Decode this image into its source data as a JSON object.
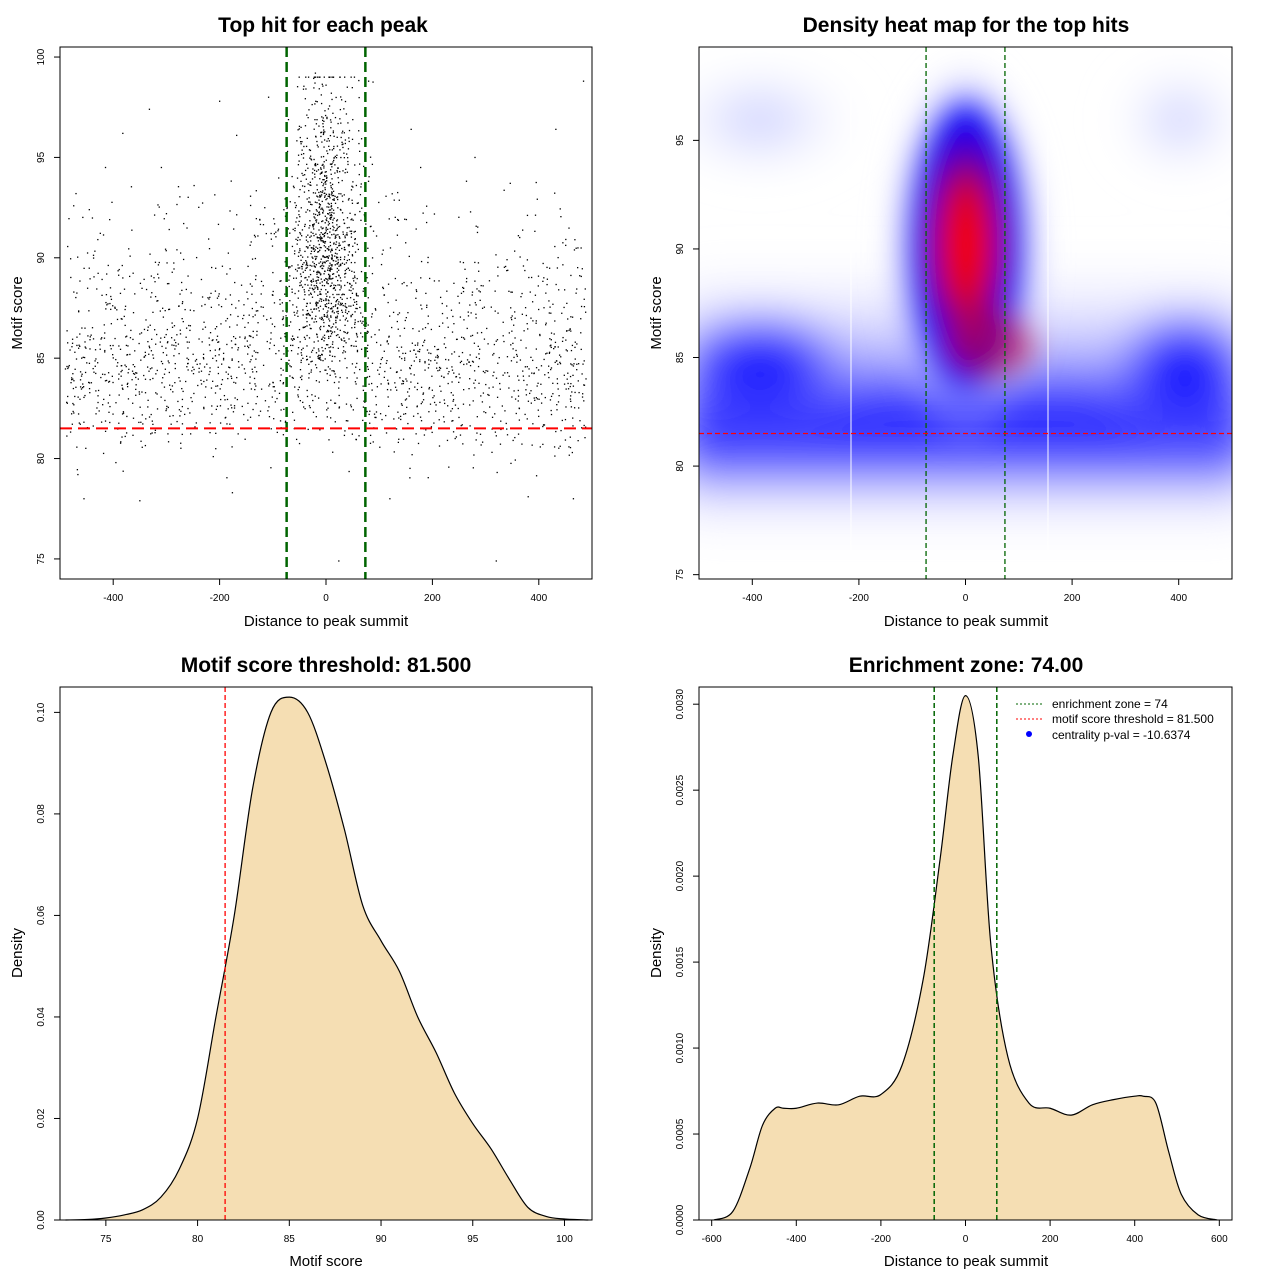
{
  "chart_data": [
    {
      "type": "scatter",
      "title": "Top hit for each peak",
      "xlabel": "Distance to peak summit",
      "ylabel": "Motif score",
      "xlim": [
        -500,
        500
      ],
      "ylim": [
        74,
        100.5
      ],
      "xticks": [
        -400,
        -200,
        0,
        200,
        400
      ],
      "yticks": [
        75,
        80,
        85,
        90,
        95,
        100
      ],
      "vlines": [
        -74,
        74
      ],
      "hline": 81.5,
      "colors": {
        "points": "#000000",
        "vlines": "#006400",
        "hline": "#ff0000"
      },
      "points_summary": "about 3000 points; a dense column of high scores (85–99) centered on 0 between -74 and 74; elsewhere points spread uniformly over -490..490 with scores mostly 80–94",
      "sample_points": [
        [
          -470,
          93.2
        ],
        [
          -455,
          78.0
        ],
        [
          -445,
          92.4
        ],
        [
          -420,
          84.2
        ],
        [
          -395,
          79.8
        ],
        [
          -382,
          96.2
        ],
        [
          -350,
          77.9
        ],
        [
          -332,
          97.4
        ],
        [
          -300,
          92.2
        ],
        [
          -248,
          93.6
        ],
        [
          -200,
          97.8
        ],
        [
          -176,
          78.3
        ],
        [
          -168,
          96.1
        ],
        [
          -108,
          98.0
        ],
        [
          -60,
          93.5
        ],
        [
          -20,
          99.2
        ],
        [
          0,
          98.6
        ],
        [
          10,
          98.2
        ],
        [
          24,
          74.9
        ],
        [
          40,
          98.5
        ],
        [
          80,
          98.8
        ],
        [
          120,
          78.0
        ],
        [
          160,
          96.4
        ],
        [
          214,
          82.8
        ],
        [
          280,
          95.0
        ],
        [
          320,
          74.9
        ],
        [
          380,
          78.1
        ],
        [
          432,
          96.4
        ],
        [
          465,
          78.0
        ],
        [
          484,
          98.8
        ]
      ]
    },
    {
      "type": "heatmap",
      "title": "Density heat map for the top hits",
      "xlabel": "Distance to peak summit",
      "ylabel": "Motif score",
      "xlim": [
        -500,
        500
      ],
      "ylim": [
        74.8,
        99.3
      ],
      "xticks": [
        -400,
        -200,
        0,
        200,
        400
      ],
      "yticks": [
        75,
        80,
        85,
        90,
        95
      ],
      "vlines": [
        -74,
        74
      ],
      "hline": 81.5,
      "colorscale": [
        "#ffffff",
        "#0000ff",
        "#ff0000"
      ],
      "hotspot": {
        "x": 0,
        "y": 90
      },
      "secondary_blob": {
        "x": 400,
        "y": 84.5
      }
    },
    {
      "type": "area",
      "title": "Motif score threshold: 81.500",
      "xlabel": "Motif score",
      "ylabel": "Density",
      "xlim": [
        72.5,
        101.5
      ],
      "ylim": [
        0,
        0.105
      ],
      "xticks": [
        75,
        80,
        85,
        90,
        95,
        100
      ],
      "yticks": [
        "0.00",
        "0.02",
        "0.04",
        "0.06",
        "0.08",
        "0.10"
      ],
      "vline": 81.5,
      "fill": "#f5deb3",
      "x": [
        72.8,
        74,
        75,
        76,
        77,
        78,
        79,
        80,
        81,
        82,
        83,
        84,
        85,
        86,
        87,
        88,
        89,
        90,
        91,
        92,
        93,
        94,
        95,
        96,
        97,
        98,
        99,
        100,
        101.3
      ],
      "values": [
        0.0,
        0.0001,
        0.0004,
        0.001,
        0.002,
        0.0045,
        0.01,
        0.02,
        0.04,
        0.06,
        0.085,
        0.1,
        0.103,
        0.1,
        0.09,
        0.077,
        0.062,
        0.055,
        0.049,
        0.04,
        0.033,
        0.025,
        0.019,
        0.014,
        0.008,
        0.0025,
        0.0007,
        0.0002,
        0.0
      ]
    },
    {
      "type": "area",
      "title": "Enrichment zone: 74.00",
      "xlabel": "Distance to peak summit",
      "ylabel": "Density",
      "xlim": [
        -630,
        630
      ],
      "ylim": [
        0,
        0.0031
      ],
      "xticks": [
        -600,
        -400,
        -200,
        0,
        200,
        400,
        600
      ],
      "yticks": [
        "0.0000",
        "0.0005",
        "0.0010",
        "0.0015",
        "0.0020",
        "0.0025",
        "0.0030"
      ],
      "vlines": [
        -74,
        74
      ],
      "fill": "#f5deb3",
      "x": [
        -595,
        -550,
        -510,
        -480,
        -450,
        -430,
        -400,
        -350,
        -300,
        -250,
        -200,
        -150,
        -100,
        -60,
        -30,
        0,
        30,
        60,
        100,
        150,
        200,
        250,
        300,
        350,
        400,
        420,
        450,
        480,
        510,
        550,
        595
      ],
      "values": [
        0.0,
        5e-05,
        0.0003,
        0.00055,
        0.00065,
        0.00065,
        0.00065,
        0.00068,
        0.00067,
        0.00072,
        0.00073,
        0.0009,
        0.0014,
        0.0021,
        0.0027,
        0.00305,
        0.0027,
        0.0016,
        0.00095,
        0.00068,
        0.00065,
        0.00061,
        0.00067,
        0.0007,
        0.00072,
        0.00072,
        0.00068,
        0.0004,
        0.00015,
        3e-05,
        0.0
      ],
      "legend": {
        "position": "top-right",
        "entries": [
          {
            "label": "enrichment zone = 74",
            "style": "dotted-line",
            "color": "#006400"
          },
          {
            "label": "motif score threshold = 81.500",
            "style": "dotted-line",
            "color": "#ff0000"
          },
          {
            "label": "centrality p-val = -10.6374",
            "style": "dot",
            "color": "#0000ff"
          }
        ]
      }
    }
  ]
}
